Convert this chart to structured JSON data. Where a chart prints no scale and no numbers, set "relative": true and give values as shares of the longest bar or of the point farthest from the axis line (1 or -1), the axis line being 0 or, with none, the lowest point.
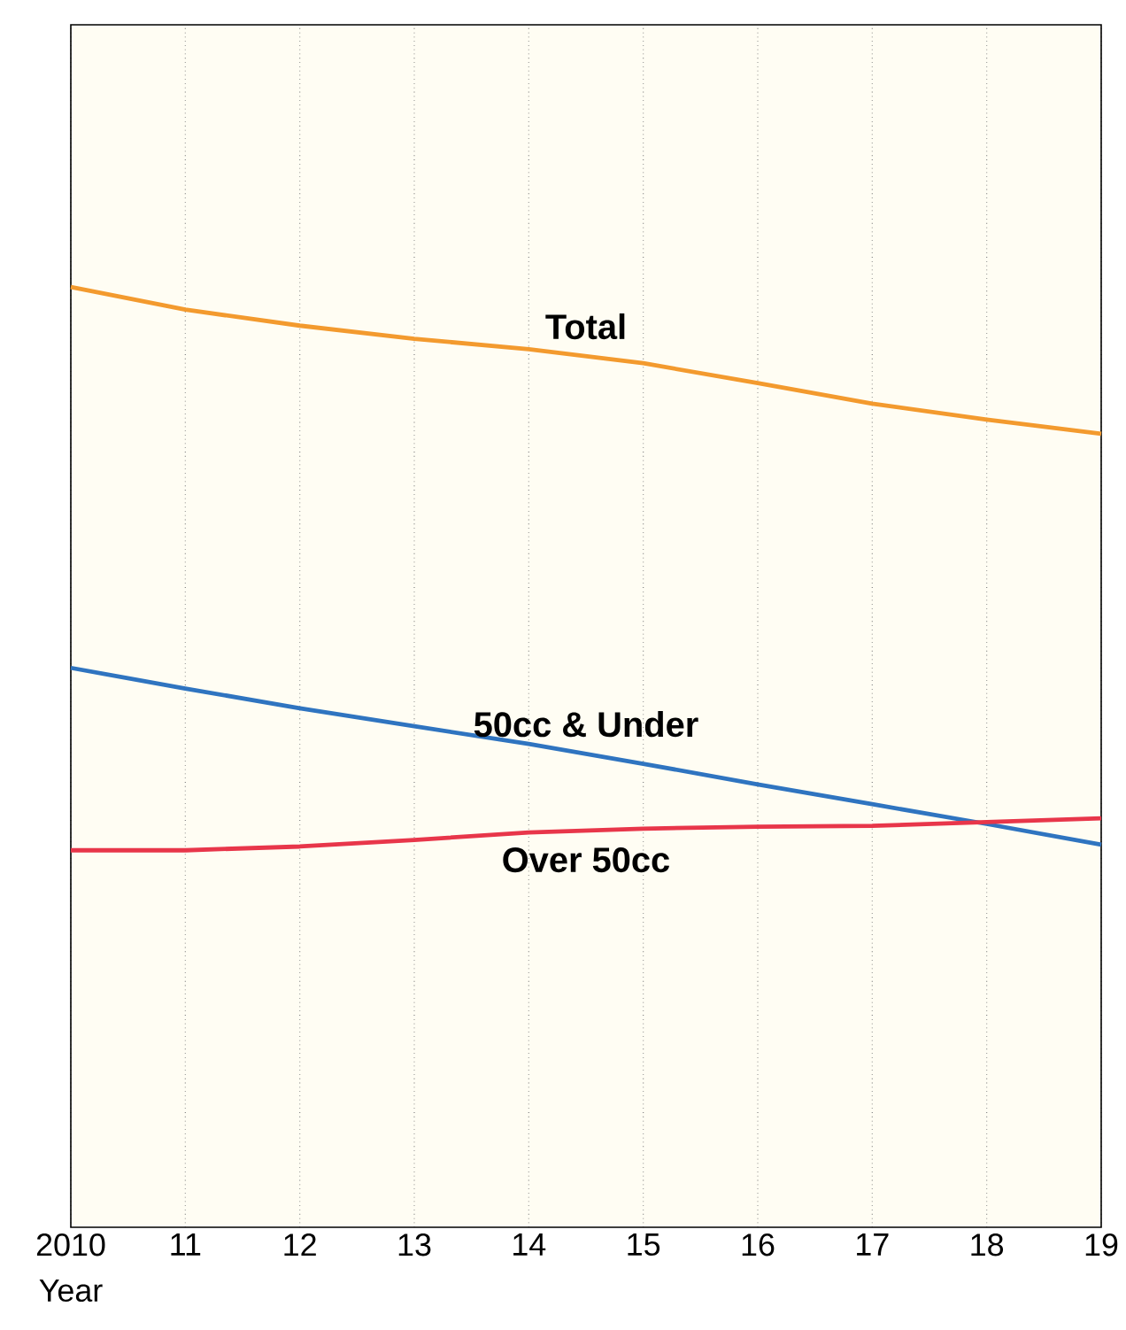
{
  "chart_data": {
    "type": "line",
    "relative": true,
    "xlabel": "Year",
    "x": [
      2010,
      2011,
      2012,
      2013,
      2014,
      2015,
      2016,
      2017,
      2018,
      2019
    ],
    "xlim": [
      2010,
      2019
    ],
    "xticks": [
      2010,
      {
        "value": 2011,
        "label": "11"
      },
      {
        "value": 2012,
        "label": "12"
      },
      {
        "value": 2013,
        "label": "13"
      },
      {
        "value": 2014,
        "label": "14"
      },
      {
        "value": 2015,
        "label": "15"
      },
      {
        "value": 2016,
        "label": "16"
      },
      {
        "value": 2017,
        "label": "17"
      },
      {
        "value": 2018,
        "label": "18"
      },
      {
        "value": 2019,
        "label": "19"
      }
    ],
    "grid": "x",
    "marker": "none",
    "line_style": "solid",
    "series": [
      {
        "name": "Total",
        "color": "#f39a2e",
        "values": [
          1,
          0.976,
          0.959,
          0.945,
          0.934,
          0.919,
          0.898,
          0.876,
          0.859,
          0.844
        ]
      },
      {
        "name": "50cc & Under",
        "color": "#2f74c0",
        "values": [
          0.595,
          0.573,
          0.552,
          0.533,
          0.514,
          0.493,
          0.471,
          0.45,
          0.429,
          0.407
        ]
      },
      {
        "name": "Over 50cc",
        "color": "#e8364a",
        "values": [
          0.401,
          0.401,
          0.405,
          0.412,
          0.42,
          0.424,
          0.426,
          0.427,
          0.431,
          0.435
        ]
      }
    ]
  }
}
